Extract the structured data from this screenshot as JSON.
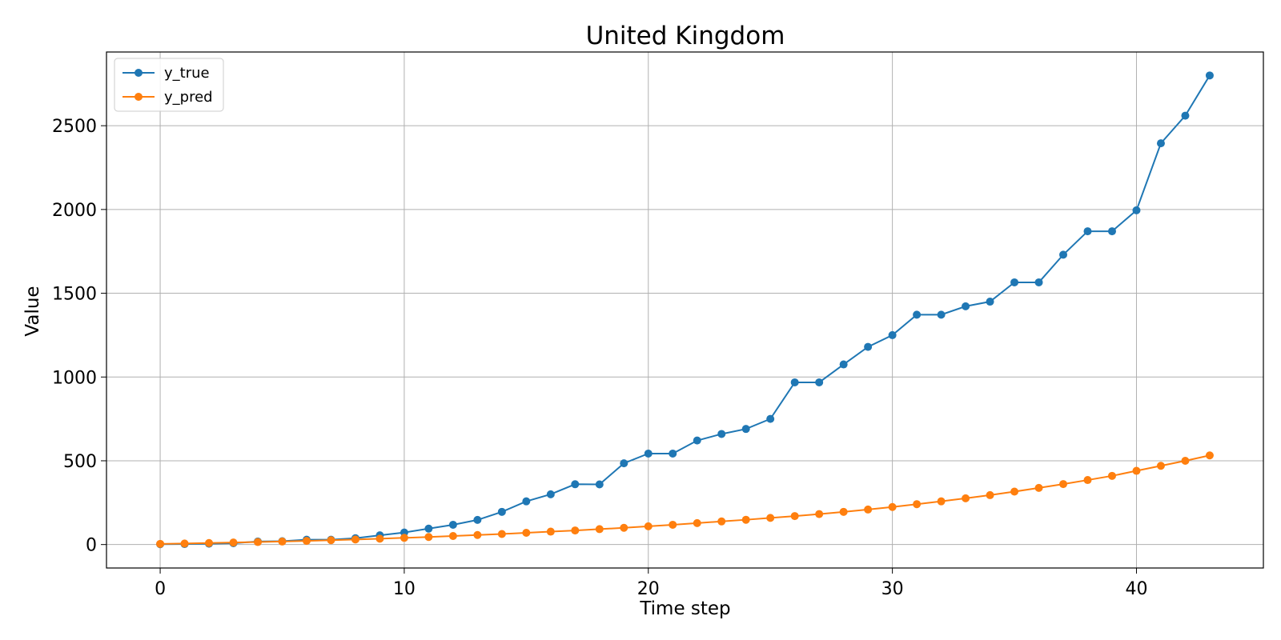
{
  "chart_data": {
    "type": "line",
    "title": "United Kingdom",
    "xlabel": "Time step",
    "ylabel": "Value",
    "xlim": [
      -2.2,
      45.2
    ],
    "ylim": [
      -140,
      2940
    ],
    "x_ticks": [
      0,
      10,
      20,
      30,
      40
    ],
    "y_ticks": [
      0,
      500,
      1000,
      1500,
      2000,
      2500
    ],
    "grid": true,
    "legend_position": "top-left",
    "x": [
      0,
      1,
      2,
      3,
      4,
      5,
      6,
      7,
      8,
      9,
      10,
      11,
      12,
      13,
      14,
      15,
      16,
      17,
      18,
      19,
      20,
      21,
      22,
      23,
      24,
      25,
      26,
      27,
      28,
      29,
      30,
      31,
      32,
      33,
      34,
      35,
      36,
      37,
      38,
      39,
      40,
      41,
      42,
      43
    ],
    "series": [
      {
        "name": "y_true",
        "color": "#1f77b4",
        "values": [
          2,
          3,
          5,
          8,
          18,
          20,
          29,
          29,
          38,
          55,
          72,
          95,
          118,
          147,
          195,
          258,
          300,
          360,
          359,
          485,
          543,
          543,
          621,
          660,
          690,
          750,
          968,
          968,
          1075,
          1180,
          1250,
          1372,
          1372,
          1422,
          1450,
          1565,
          1565,
          1730,
          1870,
          1870,
          1995,
          2395,
          2560,
          2800
        ]
      },
      {
        "name": "y_pred",
        "color": "#ff7f0e",
        "values": [
          4,
          6,
          9,
          12,
          15,
          18,
          22,
          26,
          30,
          35,
          40,
          45,
          51,
          57,
          63,
          70,
          77,
          84,
          92,
          100,
          109,
          118,
          128,
          138,
          148,
          159,
          170,
          182,
          195,
          209,
          224,
          241,
          258,
          276,
          295,
          316,
          338,
          361,
          385,
          410,
          440,
          470,
          500,
          532
        ]
      }
    ]
  }
}
